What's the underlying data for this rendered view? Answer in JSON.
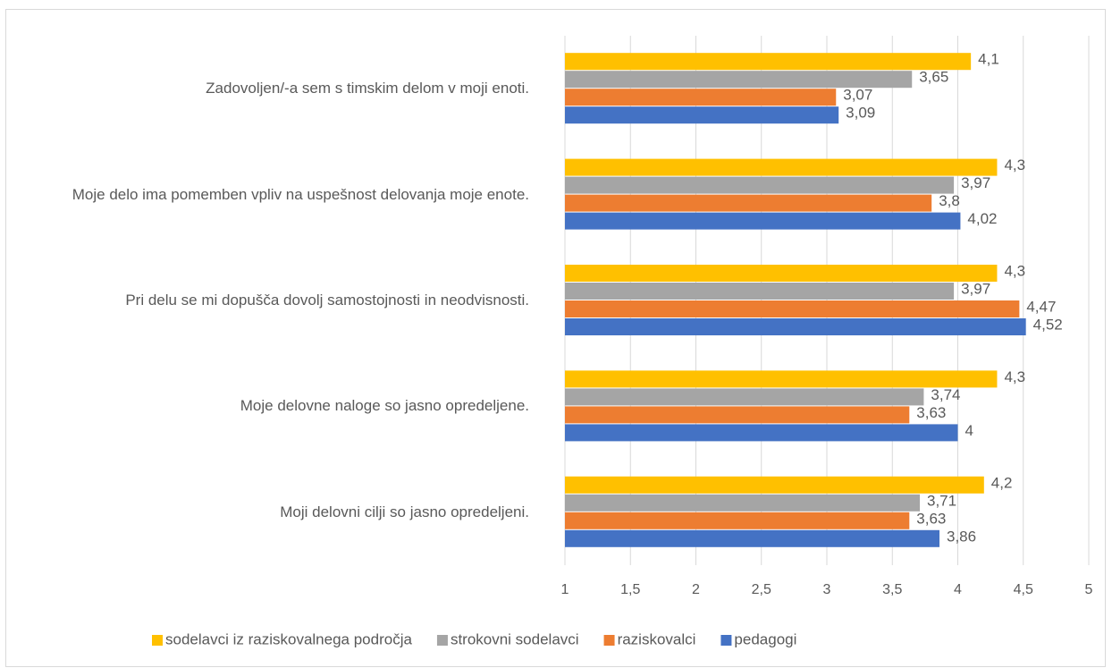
{
  "chart_data": {
    "type": "hbar",
    "categories": [
      "Zadovoljen/-a sem s timskim delom v moji enoti.",
      "Moje delo ima pomemben vpliv na uspešnost delovanja moje enote.",
      "Pri delu se mi dopušča dovolj samostojnosti in neodvisnosti.",
      "Moje delovne naloge so jasno opredeljene.",
      "Moji delovni cilji so jasno opredeljeni."
    ],
    "series": [
      {
        "name": "sodelavci iz raziskovalnega področja",
        "color": "#ffc000",
        "values": [
          4.1,
          4.3,
          4.3,
          4.3,
          4.2
        ],
        "value_labels": [
          "4,1",
          "4,3",
          "4,3",
          "4,3",
          "4,2"
        ]
      },
      {
        "name": "strokovni sodelavci",
        "color": "#a5a5a5",
        "values": [
          3.65,
          3.97,
          3.97,
          3.74,
          3.71
        ],
        "value_labels": [
          "3,65",
          "3,97",
          "3,97",
          "3,74",
          "3,71"
        ]
      },
      {
        "name": "raziskovalci",
        "color": "#ed7d31",
        "values": [
          3.07,
          3.8,
          4.47,
          3.63,
          3.63
        ],
        "value_labels": [
          "3,07",
          "3,8",
          "4,47",
          "3,63",
          "3,63"
        ]
      },
      {
        "name": "pedagogi",
        "color": "#4472c4",
        "values": [
          3.09,
          4.02,
          4.52,
          4,
          3.86
        ],
        "value_labels": [
          "3,09",
          "4,02",
          "4,52",
          "4",
          "3,86"
        ]
      }
    ],
    "xlim": [
      1,
      5
    ],
    "xticks": [
      1,
      {
        "value": 1.5,
        "label": "1,5"
      },
      2,
      {
        "value": 2.5,
        "label": "2,5"
      },
      3,
      {
        "value": 3.5,
        "label": "3,5"
      },
      4,
      {
        "value": 4.5,
        "label": "4,5"
      },
      5
    ],
    "grid": true,
    "legend": "bottom"
  }
}
